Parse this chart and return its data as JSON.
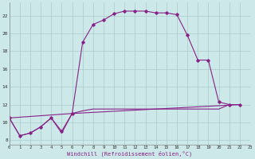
{
  "background_color": "#cce8e8",
  "grid_color": "#aacccc",
  "line_color": "#882288",
  "title": "Windchill (Refroidissement éolien,°C)",
  "xlim": [
    0,
    23
  ],
  "ylim": [
    7.5,
    23.5
  ],
  "xticks": [
    0,
    1,
    2,
    3,
    4,
    5,
    6,
    7,
    8,
    9,
    10,
    11,
    12,
    13,
    14,
    15,
    16,
    17,
    18,
    19,
    20,
    21,
    22,
    23
  ],
  "yticks": [
    8,
    10,
    12,
    14,
    16,
    18,
    20,
    22
  ],
  "series1_x": [
    0,
    1,
    2,
    3,
    4,
    5,
    6,
    7,
    8,
    9,
    10,
    11,
    12,
    13,
    14,
    15,
    16,
    17,
    18,
    19,
    20,
    21,
    22
  ],
  "series1_y": [
    10.5,
    8.5,
    8.8,
    9.5,
    10.5,
    9.0,
    11.0,
    19.0,
    21.0,
    21.5,
    22.2,
    22.5,
    22.5,
    22.5,
    22.3,
    22.3,
    22.1,
    19.8,
    17.0,
    17.0,
    12.3,
    12.0,
    12.0
  ],
  "series2_x": [
    0,
    1,
    2,
    3,
    4,
    5,
    6,
    7,
    8,
    9,
    10,
    11,
    12,
    13,
    14,
    15,
    16,
    17,
    18,
    19,
    20,
    21,
    22
  ],
  "series2_y": [
    10.5,
    8.5,
    8.8,
    9.5,
    10.5,
    8.8,
    11.0,
    11.3,
    11.5,
    11.5,
    11.5,
    11.5,
    11.5,
    11.5,
    11.5,
    11.5,
    11.5,
    11.5,
    11.5,
    11.5,
    11.5,
    12.0,
    12.0
  ],
  "series3_x": [
    0,
    6,
    22
  ],
  "series3_y": [
    10.5,
    11.0,
    12.0
  ]
}
